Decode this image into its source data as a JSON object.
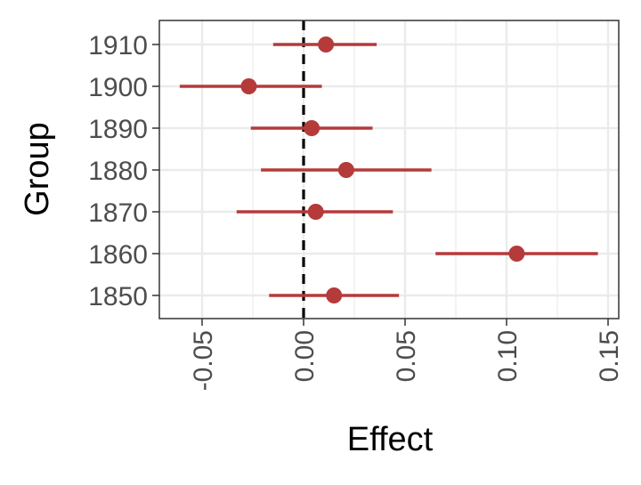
{
  "chart_data": {
    "type": "scatter",
    "subtype": "forest-plot",
    "title": "",
    "xlabel": "Effect",
    "ylabel": "Group",
    "xlim": [
      -0.07,
      0.155
    ],
    "xticks": [
      -0.05,
      0.0,
      0.05,
      0.1,
      0.15
    ],
    "xtick_labels": [
      "-0.05",
      "0.00",
      "0.05",
      "0.10",
      "0.15"
    ],
    "xtick_label_rotation": "vertical",
    "categories": [
      "1850",
      "1860",
      "1870",
      "1880",
      "1890",
      "1900",
      "1910"
    ],
    "points": [
      {
        "group": "1850",
        "estimate": 0.015,
        "lower": -0.017,
        "upper": 0.047
      },
      {
        "group": "1860",
        "estimate": 0.105,
        "lower": 0.065,
        "upper": 0.145
      },
      {
        "group": "1870",
        "estimate": 0.006,
        "lower": -0.033,
        "upper": 0.044
      },
      {
        "group": "1880",
        "estimate": 0.021,
        "lower": -0.021,
        "upper": 0.063
      },
      {
        "group": "1890",
        "estimate": 0.004,
        "lower": -0.026,
        "upper": 0.034
      },
      {
        "group": "1900",
        "estimate": -0.027,
        "lower": -0.061,
        "upper": 0.009
      },
      {
        "group": "1910",
        "estimate": 0.011,
        "lower": -0.015,
        "upper": 0.036
      }
    ],
    "reference_line": {
      "x": 0.0,
      "style": "dashed"
    },
    "grid": true,
    "colors": {
      "point": "#b53a3a",
      "reference_line": "#000000",
      "grid": "#ebebeb",
      "panel_border": "#333333",
      "tick_text": "#4d4d4d",
      "axis_title": "#000000"
    }
  }
}
